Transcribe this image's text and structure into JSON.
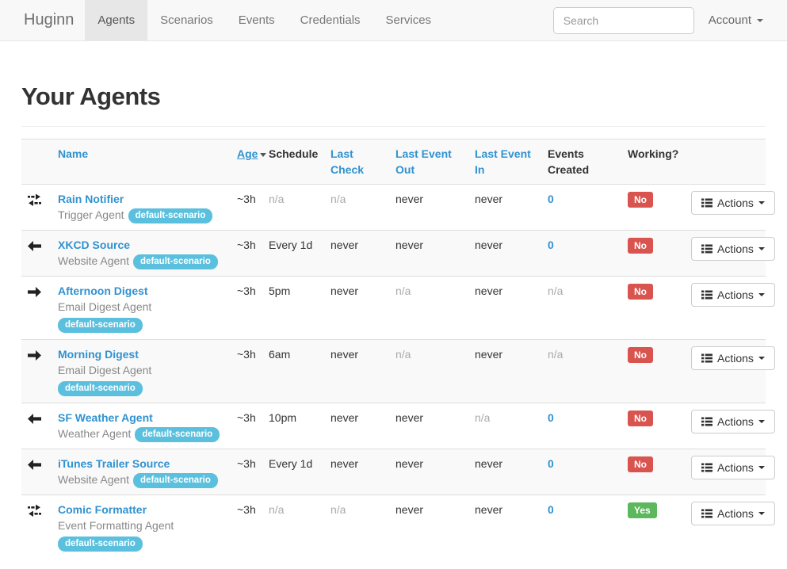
{
  "colors": {
    "link": "#3092d0",
    "info": "#5bc0de",
    "danger": "#d9534f",
    "success": "#5cb85c"
  },
  "navbar": {
    "brand": "Huginn",
    "items": [
      {
        "label": "Agents",
        "active": true
      },
      {
        "label": "Scenarios",
        "active": false
      },
      {
        "label": "Events",
        "active": false
      },
      {
        "label": "Credentials",
        "active": false
      },
      {
        "label": "Services",
        "active": false
      }
    ],
    "search_placeholder": "Search",
    "account_label": "Account"
  },
  "page": {
    "title": "Your Agents"
  },
  "table": {
    "headers": [
      {
        "label": "",
        "link": false,
        "sorted": false
      },
      {
        "label": "Name",
        "link": true,
        "sorted": false
      },
      {
        "label": "Age",
        "link": true,
        "sorted": true
      },
      {
        "label": "Schedule",
        "link": false,
        "sorted": false
      },
      {
        "label": "Last Check",
        "link": true,
        "sorted": false
      },
      {
        "label": "Last Event Out",
        "link": true,
        "sorted": false
      },
      {
        "label": "Last Event In",
        "link": true,
        "sorted": false
      },
      {
        "label": "Events Created",
        "link": false,
        "sorted": false
      },
      {
        "label": "Working?",
        "link": false,
        "sorted": false
      },
      {
        "label": "",
        "link": false,
        "sorted": false
      }
    ],
    "actions_label": "Actions",
    "rows": [
      {
        "icon": "transfer",
        "name": "Rain Notifier",
        "type": "Trigger Agent",
        "scenario": "default-scenario",
        "scenario_on_new_line": false,
        "age": "~3h",
        "schedule": "n/a",
        "last_check": "n/a",
        "last_event_out": "never",
        "last_event_in": "never",
        "events_created": "0",
        "working": "No"
      },
      {
        "icon": "arrow-left",
        "name": "XKCD Source",
        "type": "Website Agent",
        "scenario": "default-scenario",
        "scenario_on_new_line": false,
        "age": "~3h",
        "schedule": "Every 1d",
        "last_check": "never",
        "last_event_out": "never",
        "last_event_in": "never",
        "events_created": "0",
        "working": "No"
      },
      {
        "icon": "arrow-right",
        "name": "Afternoon Digest",
        "type": "Email Digest Agent",
        "scenario": "default-scenario",
        "scenario_on_new_line": true,
        "age": "~3h",
        "schedule": "5pm",
        "last_check": "never",
        "last_event_out": "n/a",
        "last_event_in": "never",
        "events_created": "n/a",
        "working": "No"
      },
      {
        "icon": "arrow-right",
        "name": "Morning Digest",
        "type": "Email Digest Agent",
        "scenario": "default-scenario",
        "scenario_on_new_line": true,
        "age": "~3h",
        "schedule": "6am",
        "last_check": "never",
        "last_event_out": "n/a",
        "last_event_in": "never",
        "events_created": "n/a",
        "working": "No"
      },
      {
        "icon": "arrow-left",
        "name": "SF Weather Agent",
        "type": "Weather Agent",
        "scenario": "default-scenario",
        "scenario_on_new_line": false,
        "age": "~3h",
        "schedule": "10pm",
        "last_check": "never",
        "last_event_out": "never",
        "last_event_in": "n/a",
        "events_created": "0",
        "working": "No"
      },
      {
        "icon": "arrow-left",
        "name": "iTunes Trailer Source",
        "type": "Website Agent",
        "scenario": "default-scenario",
        "scenario_on_new_line": false,
        "age": "~3h",
        "schedule": "Every 1d",
        "last_check": "never",
        "last_event_out": "never",
        "last_event_in": "never",
        "events_created": "0",
        "working": "No"
      },
      {
        "icon": "transfer",
        "name": "Comic Formatter",
        "type": "Event Formatting Agent",
        "scenario": "default-scenario",
        "scenario_on_new_line": true,
        "age": "~3h",
        "schedule": "n/a",
        "last_check": "n/a",
        "last_event_out": "never",
        "last_event_in": "never",
        "events_created": "0",
        "working": "Yes"
      }
    ]
  }
}
